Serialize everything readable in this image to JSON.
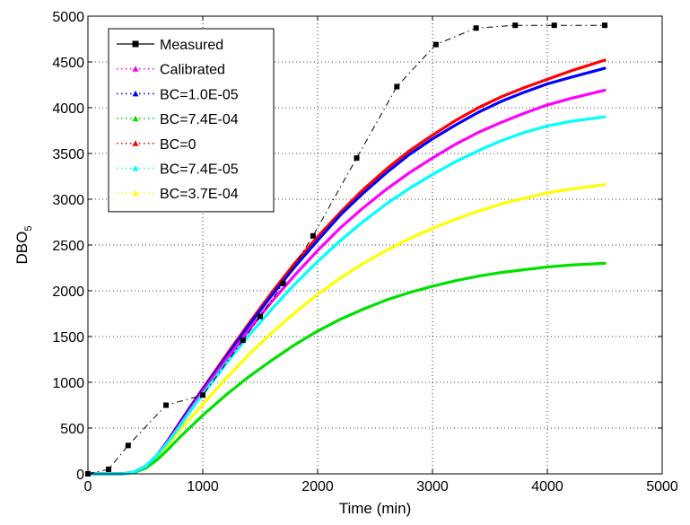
{
  "chart_data": {
    "type": "line",
    "title": "",
    "xlabel": "Time (min)",
    "ylabel": "DBO",
    "ylabel_subscript": "5",
    "xlim": [
      0,
      5000
    ],
    "ylim": [
      0,
      5000
    ],
    "xticks": [
      0,
      1000,
      2000,
      3000,
      4000,
      5000
    ],
    "yticks": [
      0,
      500,
      1000,
      1500,
      2000,
      2500,
      3000,
      3500,
      4000,
      4500,
      5000
    ],
    "grid": true,
    "legend_position": "top-left",
    "series": [
      {
        "name": "Measured",
        "color": "#000000",
        "style": "dashed-square-markers",
        "x": [
          0,
          180,
          350,
          680,
          1000,
          1350,
          1500,
          1700,
          1960,
          2340,
          2690,
          3030,
          3380,
          3720,
          4060,
          4500
        ],
        "y": [
          0,
          50,
          310,
          750,
          860,
          1460,
          1720,
          2080,
          2600,
          3450,
          4230,
          4690,
          4870,
          4900,
          4900,
          4900
        ]
      },
      {
        "name": "Calibrated",
        "color": "#ff00ff",
        "style": "solid",
        "x": [
          0,
          300,
          400,
          500,
          600,
          700,
          800,
          900,
          1000,
          1200,
          1400,
          1600,
          1800,
          2000,
          2200,
          2400,
          2600,
          2800,
          3000,
          3200,
          3400,
          3600,
          3800,
          4000,
          4200,
          4500
        ],
        "y": [
          0,
          0,
          20,
          80,
          200,
          360,
          540,
          720,
          900,
          1240,
          1570,
          1880,
          2170,
          2440,
          2690,
          2910,
          3110,
          3290,
          3450,
          3600,
          3730,
          3840,
          3940,
          4030,
          4100,
          4190
        ]
      },
      {
        "name": "BC=1.0E-05",
        "color": "#0000ff",
        "style": "solid",
        "x": [
          0,
          300,
          400,
          500,
          600,
          700,
          800,
          900,
          1000,
          1200,
          1400,
          1600,
          1800,
          2000,
          2200,
          2400,
          2600,
          2800,
          3000,
          3200,
          3400,
          3600,
          3800,
          4000,
          4200,
          4500
        ],
        "y": [
          0,
          0,
          20,
          80,
          200,
          370,
          560,
          740,
          920,
          1270,
          1620,
          1950,
          2260,
          2550,
          2830,
          3070,
          3290,
          3490,
          3660,
          3810,
          3950,
          4070,
          4170,
          4260,
          4330,
          4430
        ]
      },
      {
        "name": "BC=7.4E-04",
        "color": "#00e000",
        "style": "solid",
        "x": [
          0,
          300,
          400,
          500,
          600,
          700,
          800,
          900,
          1000,
          1200,
          1400,
          1600,
          1800,
          2000,
          2200,
          2400,
          2600,
          2800,
          3000,
          3200,
          3400,
          3600,
          3800,
          4000,
          4200,
          4500
        ],
        "y": [
          0,
          0,
          15,
          60,
          150,
          270,
          400,
          520,
          640,
          860,
          1060,
          1240,
          1410,
          1560,
          1690,
          1800,
          1900,
          1980,
          2050,
          2110,
          2160,
          2200,
          2230,
          2260,
          2280,
          2300
        ]
      },
      {
        "name": "BC=0",
        "color": "#ff0000",
        "style": "solid",
        "x": [
          0,
          300,
          400,
          500,
          600,
          700,
          800,
          900,
          1000,
          1200,
          1400,
          1600,
          1800,
          2000,
          2200,
          2400,
          2600,
          2800,
          3000,
          3200,
          3400,
          3600,
          3800,
          4000,
          4200,
          4500
        ],
        "y": [
          0,
          0,
          20,
          80,
          200,
          370,
          560,
          750,
          930,
          1290,
          1640,
          1980,
          2300,
          2590,
          2860,
          3110,
          3330,
          3530,
          3700,
          3860,
          4000,
          4120,
          4220,
          4310,
          4400,
          4520
        ]
      },
      {
        "name": "BC=7.4E-05",
        "color": "#00ffff",
        "style": "solid",
        "x": [
          0,
          300,
          400,
          500,
          600,
          700,
          800,
          900,
          1000,
          1200,
          1400,
          1600,
          1800,
          2000,
          2200,
          2400,
          2600,
          2800,
          3000,
          3200,
          3400,
          3600,
          3800,
          4000,
          4200,
          4500
        ],
        "y": [
          0,
          0,
          20,
          80,
          200,
          350,
          520,
          700,
          870,
          1200,
          1510,
          1800,
          2070,
          2320,
          2550,
          2760,
          2950,
          3120,
          3270,
          3410,
          3530,
          3640,
          3730,
          3800,
          3850,
          3900
        ]
      },
      {
        "name": "BC=3.7E-04",
        "color": "#ffff00",
        "style": "solid",
        "x": [
          0,
          300,
          400,
          500,
          600,
          700,
          800,
          900,
          1000,
          1200,
          1400,
          1600,
          1800,
          2000,
          2200,
          2400,
          2600,
          2800,
          3000,
          3200,
          3400,
          3600,
          3800,
          4000,
          4200,
          4500
        ],
        "y": [
          0,
          0,
          20,
          70,
          180,
          320,
          480,
          620,
          760,
          1040,
          1300,
          1540,
          1760,
          1960,
          2140,
          2300,
          2440,
          2570,
          2680,
          2780,
          2870,
          2950,
          3010,
          3070,
          3110,
          3160
        ]
      }
    ]
  }
}
